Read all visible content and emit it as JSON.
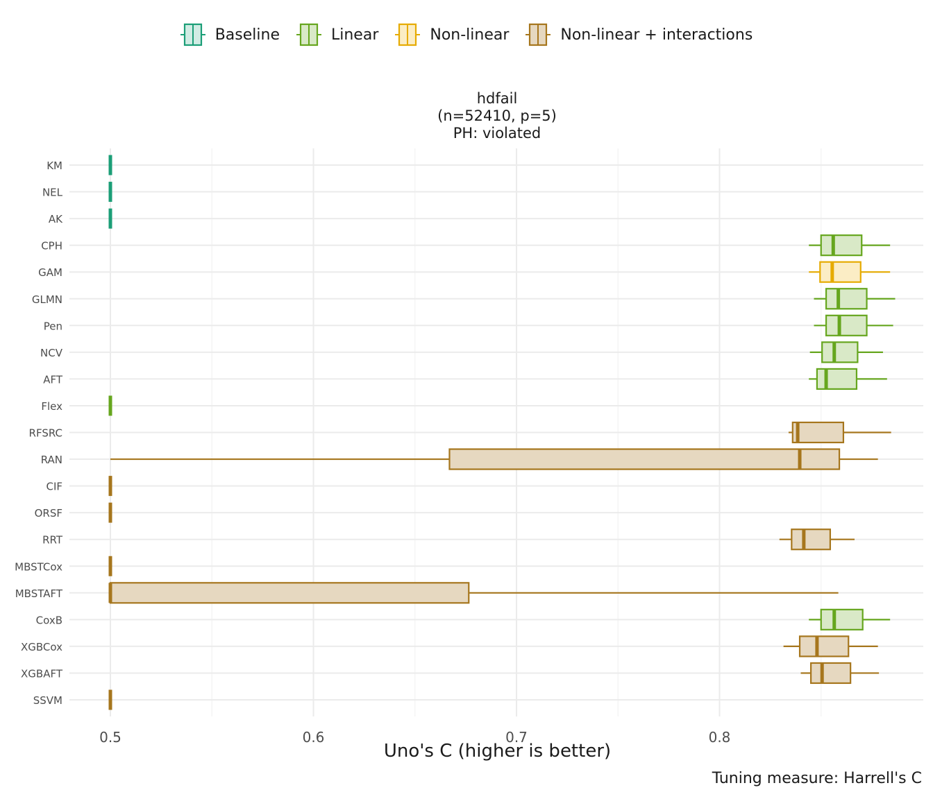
{
  "chart_data": {
    "type": "boxplot",
    "title": "hdfail",
    "subtitle_lines": [
      "(n=52410, p=5)",
      "PH: violated"
    ],
    "xlabel": "Uno's C (higher is better)",
    "ylabel": "",
    "caption": "Tuning measure: Harrell's C",
    "xlim": [
      0.48,
      0.9
    ],
    "x_ticks": [
      0.5,
      0.6,
      0.7,
      0.8
    ],
    "x_tick_labels": [
      "0.5",
      "0.6",
      "0.7",
      "0.8"
    ],
    "grid": true,
    "legend_position": "top",
    "groups": [
      {
        "name": "Baseline",
        "color": "#1b9e77",
        "fill": "#d1ece4"
      },
      {
        "name": "Linear",
        "color": "#66a61e",
        "fill": "#d9e9c7"
      },
      {
        "name": "Non-linear",
        "color": "#e6ab02",
        "fill": "#fbedc5"
      },
      {
        "name": "Non-linear + interactions",
        "color": "#a6761d",
        "fill": "#e6d8c0"
      }
    ],
    "categories": [
      "KM",
      "NEL",
      "AK",
      "CPH",
      "GAM",
      "GLMN",
      "Pen",
      "NCV",
      "AFT",
      "Flex",
      "RFSRC",
      "RAN",
      "CIF",
      "ORSF",
      "RRT",
      "MBSTCox",
      "MBSTAFT",
      "CoxB",
      "XGBCox",
      "XGBAFT",
      "SSVM"
    ],
    "boxes": [
      {
        "label": "KM",
        "group": 0,
        "min": 0.5,
        "q1": 0.5,
        "median": 0.5,
        "q3": 0.5,
        "max": 0.5
      },
      {
        "label": "NEL",
        "group": 0,
        "min": 0.5,
        "q1": 0.5,
        "median": 0.5,
        "q3": 0.5,
        "max": 0.5
      },
      {
        "label": "AK",
        "group": 0,
        "min": 0.5,
        "q1": 0.5,
        "median": 0.5,
        "q3": 0.5,
        "max": 0.5
      },
      {
        "label": "CPH",
        "group": 1,
        "min": 0.844,
        "q1": 0.85,
        "median": 0.856,
        "q3": 0.87,
        "max": 0.884
      },
      {
        "label": "GAM",
        "group": 2,
        "min": 0.844,
        "q1": 0.8495,
        "median": 0.8555,
        "q3": 0.8695,
        "max": 0.884
      },
      {
        "label": "GLMN",
        "group": 1,
        "min": 0.8465,
        "q1": 0.8525,
        "median": 0.8585,
        "q3": 0.8725,
        "max": 0.8865
      },
      {
        "label": "Pen",
        "group": 1,
        "min": 0.8465,
        "q1": 0.8525,
        "median": 0.859,
        "q3": 0.8725,
        "max": 0.8855
      },
      {
        "label": "NCV",
        "group": 1,
        "min": 0.8445,
        "q1": 0.8505,
        "median": 0.8565,
        "q3": 0.868,
        "max": 0.8805
      },
      {
        "label": "AFT",
        "group": 1,
        "min": 0.844,
        "q1": 0.848,
        "median": 0.8525,
        "q3": 0.8675,
        "max": 0.8825
      },
      {
        "label": "Flex",
        "group": 1,
        "min": 0.5,
        "q1": 0.5,
        "median": 0.5,
        "q3": 0.5,
        "max": 0.5
      },
      {
        "label": "RFSRC",
        "group": 3,
        "min": 0.834,
        "q1": 0.836,
        "median": 0.8385,
        "q3": 0.861,
        "max": 0.8845
      },
      {
        "label": "RAN",
        "group": 3,
        "min": 0.5,
        "q1": 0.667,
        "median": 0.8395,
        "q3": 0.859,
        "max": 0.878
      },
      {
        "label": "CIF",
        "group": 3,
        "min": 0.5,
        "q1": 0.5,
        "median": 0.5,
        "q3": 0.5,
        "max": 0.5
      },
      {
        "label": "ORSF",
        "group": 3,
        "min": 0.5,
        "q1": 0.5,
        "median": 0.5,
        "q3": 0.5,
        "max": 0.5
      },
      {
        "label": "RRT",
        "group": 3,
        "min": 0.8295,
        "q1": 0.8355,
        "median": 0.8415,
        "q3": 0.8545,
        "max": 0.8665
      },
      {
        "label": "MBSTCox",
        "group": 3,
        "min": 0.5,
        "q1": 0.5,
        "median": 0.5,
        "q3": 0.5,
        "max": 0.5
      },
      {
        "label": "MBSTAFT",
        "group": 3,
        "min": 0.5,
        "q1": 0.5,
        "median": 0.5,
        "q3": 0.6765,
        "max": 0.8585
      },
      {
        "label": "CoxB",
        "group": 1,
        "min": 0.844,
        "q1": 0.85,
        "median": 0.8565,
        "q3": 0.8705,
        "max": 0.884
      },
      {
        "label": "XGBCox",
        "group": 3,
        "min": 0.8315,
        "q1": 0.8395,
        "median": 0.848,
        "q3": 0.8635,
        "max": 0.878
      },
      {
        "label": "XGBAFT",
        "group": 3,
        "min": 0.84,
        "q1": 0.845,
        "median": 0.8505,
        "q3": 0.8645,
        "max": 0.8785
      },
      {
        "label": "SSVM",
        "group": 3,
        "min": 0.5,
        "q1": 0.5,
        "median": 0.5,
        "q3": 0.5,
        "max": 0.5
      }
    ]
  }
}
